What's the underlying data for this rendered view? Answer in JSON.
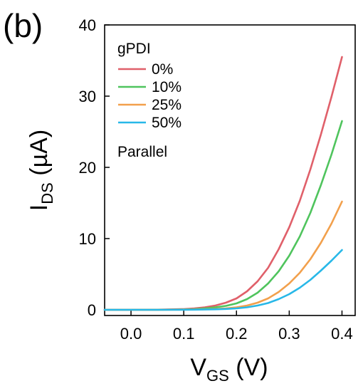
{
  "panel_label": "(b)",
  "chart_data": {
    "type": "line",
    "xlabel": {
      "main": "V",
      "sub": "GS",
      "unit": " (V)"
    },
    "ylabel": {
      "main": "I",
      "sub": "DS",
      "unit": " (µA)"
    },
    "xlim": [
      -0.05,
      0.425
    ],
    "ylim": [
      -0.8,
      40
    ],
    "xticks": [
      0.0,
      0.1,
      0.2,
      0.3,
      0.4
    ],
    "xtick_labels": [
      "0.0",
      "0.1",
      "0.2",
      "0.3",
      "0.4"
    ],
    "yticks": [
      0,
      10,
      20,
      30,
      40
    ],
    "ytick_labels": [
      "0",
      "10",
      "20",
      "30",
      "40"
    ],
    "grid": false,
    "legend": {
      "title": "gPDI",
      "footer": "Parallel",
      "placement": "top-left"
    },
    "x": [
      -0.05,
      0.0,
      0.05,
      0.1,
      0.12,
      0.14,
      0.16,
      0.18,
      0.2,
      0.22,
      0.24,
      0.26,
      0.28,
      0.3,
      0.32,
      0.34,
      0.36,
      0.38,
      0.4
    ],
    "series": [
      {
        "name": "0%",
        "color": "#e0606a",
        "values": [
          0.0,
          0.0,
          0.02,
          0.1,
          0.2,
          0.35,
          0.6,
          1.0,
          1.6,
          2.6,
          4.0,
          5.9,
          8.5,
          11.6,
          15.3,
          19.7,
          24.6,
          29.9,
          35.5
        ]
      },
      {
        "name": "10%",
        "color": "#4fc45d",
        "values": [
          0.0,
          0.0,
          0.01,
          0.05,
          0.1,
          0.2,
          0.35,
          0.55,
          0.9,
          1.5,
          2.4,
          3.7,
          5.4,
          7.6,
          10.3,
          13.6,
          17.5,
          21.8,
          26.5
        ]
      },
      {
        "name": "25%",
        "color": "#f2a04c",
        "values": [
          0.0,
          0.0,
          0.0,
          0.02,
          0.04,
          0.07,
          0.12,
          0.2,
          0.35,
          0.6,
          1.0,
          1.6,
          2.5,
          3.7,
          5.2,
          7.1,
          9.4,
          12.1,
          15.2
        ]
      },
      {
        "name": "50%",
        "color": "#28b8e8",
        "values": [
          0.0,
          0.0,
          0.0,
          0.01,
          0.02,
          0.04,
          0.07,
          0.12,
          0.2,
          0.35,
          0.6,
          0.95,
          1.5,
          2.2,
          3.1,
          4.2,
          5.5,
          6.9,
          8.4
        ]
      }
    ]
  }
}
